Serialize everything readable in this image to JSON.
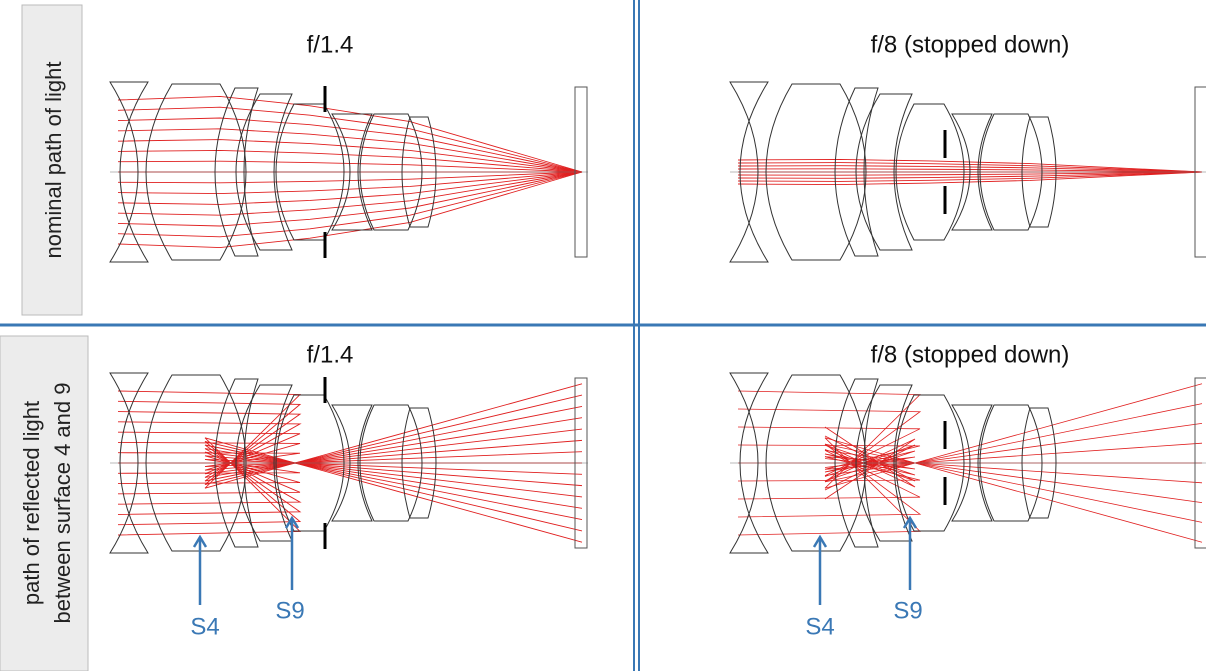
{
  "panels": [
    {
      "title": "f/1.4"
    },
    {
      "title": "f/8 (stopped down)"
    },
    {
      "title": "f/1.4"
    },
    {
      "title": "f/8 (stopped down)"
    }
  ],
  "rows": [
    {
      "label": "nominal path of light"
    },
    {
      "label_lines": [
        "path of reflected light",
        "between surface 4 and 9"
      ]
    }
  ],
  "annotations": [
    {
      "label": "S4"
    },
    {
      "label": "S9"
    },
    {
      "label": "S4"
    },
    {
      "label": "S9"
    }
  ]
}
